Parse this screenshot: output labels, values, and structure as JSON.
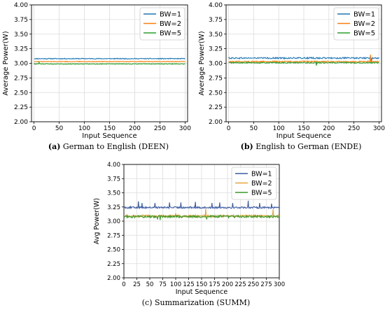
{
  "chart_data": [
    {
      "type": "line",
      "xlabel": "Input Sequence",
      "ylabel": "Average Power(W)",
      "xlim": [
        -5,
        305
      ],
      "ylim": [
        2.0,
        4.0
      ],
      "xticks": [
        "0",
        "50",
        "100",
        "150",
        "200",
        "250",
        "300"
      ],
      "yticks": [
        "2.00",
        "2.25",
        "2.50",
        "2.75",
        "3.00",
        "3.25",
        "3.50",
        "3.75",
        "4.00"
      ],
      "grid": true,
      "legend_position": "top-right",
      "caption_label": "(a)",
      "caption_text": " German to English (DEEN)",
      "series": [
        {
          "name": "BW=1",
          "color": "#1f77b4",
          "mean": 3.08,
          "noise": 0.007,
          "spikes": []
        },
        {
          "name": "BW=2",
          "color": "#ff7f0e",
          "mean": 3.03,
          "noise": 0.006,
          "spikes": []
        },
        {
          "name": "BW=5",
          "color": "#2ca02c",
          "mean": 2.99,
          "noise": 0.006,
          "spikes": [
            [
              10,
              3.02
            ]
          ]
        }
      ]
    },
    {
      "type": "line",
      "xlabel": "Input Sequence",
      "ylabel": "Average Power(W)",
      "xlim": [
        -5,
        305
      ],
      "ylim": [
        2.0,
        4.0
      ],
      "xticks": [
        "0",
        "50",
        "100",
        "150",
        "200",
        "250",
        "300"
      ],
      "yticks": [
        "2.00",
        "2.25",
        "2.50",
        "2.75",
        "3.00",
        "3.25",
        "3.50",
        "3.75",
        "4.00"
      ],
      "grid": true,
      "legend_position": "top-right",
      "caption_label": "(b)",
      "caption_text": " English to German (ENDE)",
      "series": [
        {
          "name": "BW=1",
          "color": "#1f77b4",
          "mean": 3.09,
          "noise": 0.012,
          "spikes": [
            [
              285,
              3.02
            ]
          ]
        },
        {
          "name": "BW=2",
          "color": "#ff7f0e",
          "mean": 3.03,
          "noise": 0.01,
          "spikes": [
            [
              283,
              3.15
            ],
            [
              175,
              2.97
            ]
          ]
        },
        {
          "name": "BW=5",
          "color": "#2ca02c",
          "mean": 3.01,
          "noise": 0.01,
          "spikes": [
            [
              175,
              2.96
            ]
          ]
        }
      ]
    },
    {
      "type": "line",
      "xlabel": "Input Sequence",
      "ylabel": "Avg Power(W)",
      "xlim": [
        0,
        300
      ],
      "ylim": [
        2.0,
        4.0
      ],
      "xticks": [
        "0",
        "25",
        "50",
        "75",
        "100",
        "125",
        "150",
        "175",
        "200",
        "225",
        "250",
        "275",
        "300"
      ],
      "yticks": [
        "2.00",
        "2.25",
        "2.50",
        "2.75",
        "3.00",
        "3.25",
        "3.50",
        "3.75",
        "4.00"
      ],
      "grid": true,
      "legend_position": "top-right",
      "caption_label": "",
      "caption_text": "(c) Summarization (SUMM)",
      "series": [
        {
          "name": "BW=1",
          "color": "#3b5ba5",
          "mean": 3.24,
          "noise": 0.015,
          "spikes": [
            [
              28,
              3.35
            ],
            [
              35,
              3.32
            ],
            [
              60,
              3.32
            ],
            [
              88,
              3.33
            ],
            [
              110,
              3.33
            ],
            [
              138,
              3.34
            ],
            [
              170,
              3.32
            ],
            [
              185,
              3.33
            ],
            [
              210,
              3.32
            ],
            [
              240,
              3.36
            ],
            [
              262,
              3.32
            ],
            [
              285,
              3.31
            ]
          ]
        },
        {
          "name": "BW=2",
          "color": "#e8a33a",
          "mean": 3.09,
          "noise": 0.02,
          "spikes": [
            [
              158,
              3.22
            ],
            [
              288,
              3.21
            ],
            [
              100,
              3.14
            ]
          ]
        },
        {
          "name": "BW=5",
          "color": "#3a9a2a",
          "mean": 3.08,
          "noise": 0.02,
          "spikes": [
            [
              65,
              3.03
            ],
            [
              70,
              3.02
            ],
            [
              160,
              3.03
            ]
          ]
        }
      ]
    }
  ]
}
